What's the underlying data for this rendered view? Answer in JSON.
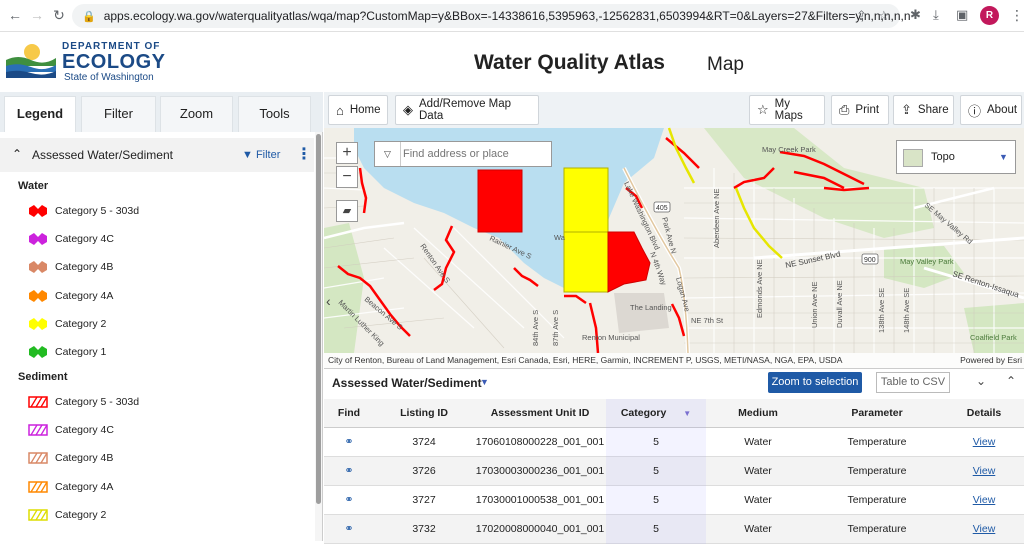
{
  "browser": {
    "url": "apps.ecology.wa.gov/waterqualityatlas/wqa/map?CustomMap=y&BBox=-14338616,5395963,-12562831,6503994&RT=0&Layers=27&Filters=y,n,n,n,n,n",
    "profile_initial": "R"
  },
  "header": {
    "dept_line": "DEPARTMENT OF",
    "ecology_line": "ECOLOGY",
    "state_line": "State of Washington",
    "title": "Water Quality Atlas",
    "subtitle": "Map"
  },
  "tabs": [
    {
      "label": "Legend",
      "active": true
    },
    {
      "label": "Filter",
      "active": false
    },
    {
      "label": "Zoom",
      "active": false
    },
    {
      "label": "Tools",
      "active": false
    }
  ],
  "layer_panel": {
    "title": "Assessed Water/Sediment",
    "filter_label": "Filter"
  },
  "legend": {
    "water_title": "Water",
    "water_items": [
      {
        "label": "Category 5 - 303d",
        "color": "#ff0000"
      },
      {
        "label": "Category 4C",
        "color": "#cc22dd"
      },
      {
        "label": "Category 4B",
        "color": "#d98866"
      },
      {
        "label": "Category 4A",
        "color": "#ff8800"
      },
      {
        "label": "Category 2",
        "color": "#ffff00"
      },
      {
        "label": "Category 1",
        "color": "#22bb22"
      }
    ],
    "sediment_title": "Sediment",
    "sediment_items": [
      {
        "label": "Category 5 - 303d",
        "color": "#ff0000"
      },
      {
        "label": "Category 4C",
        "color": "#cc22dd"
      },
      {
        "label": "Category 4B",
        "color": "#d98866"
      },
      {
        "label": "Category 4A",
        "color": "#ff8800"
      },
      {
        "label": "Category 2",
        "color": "#dddd00"
      }
    ]
  },
  "toolbar": {
    "home": "Home",
    "add_remove": "Add/Remove Map Data",
    "my_maps": "My Maps",
    "print": "Print",
    "share": "Share",
    "about": "About"
  },
  "map": {
    "search_placeholder": "Find address or place",
    "basemap": "Topo",
    "attribution": "City of Renton, Bureau of Land Management, Esri Canada, Esri, HERE, Garmin, INCREMENT P, USGS, METI/NASA, NGA, EPA, USDA",
    "powered_by": "Powered by Esri",
    "labels": {
      "may_creek_park": "May Creek Park",
      "may_valley": "May Valley Park",
      "landing": "The Landing",
      "renton_municipal": "Renton Municipal",
      "aberdeen": "Aberdeen Ave NE",
      "sunset": "NE Sunset Blvd",
      "renton_issaquah": "SE Renton-Issaqua",
      "may_valley_rd": "SE May Valley Rd",
      "coalfield": "Coalfield Park",
      "rainier": "Rainier Ave S",
      "beacon": "Beacon Ave S",
      "mlk": "Martin Luther King",
      "renton_ave": "Renton Ave S",
      "lake_wash_blvd": "Lake Washington Blvd",
      "wa": "Wa",
      "ne_7th": "NE 7th St",
      "logan": "Logan Ave",
      "84th": "84th Ave S",
      "87th": "87th Ave S",
      "edmonds": "Edmonds Ave NE",
      "union": "Union Ave NE",
      "duvall": "Duvall Ave NE",
      "138th": "138th Ave SE",
      "148th": "148th Ave SE",
      "hwy405": "405",
      "hwy900": "900",
      "park_ave": "Park Ave N",
      "n_4th": "N 4th Way"
    }
  },
  "results": {
    "title": "Assessed Water/Sediment",
    "zoom_to_selection": "Zoom to selection",
    "table_to_csv": "Table to CSV",
    "columns": [
      "Find",
      "Listing ID",
      "Assessment Unit ID",
      "Category",
      "Medium",
      "Parameter",
      "Details"
    ],
    "rows": [
      {
        "listing_id": "3724",
        "au_id": "17060108000228_001_001",
        "category": "5",
        "medium": "Water",
        "parameter": "Temperature",
        "details": "View"
      },
      {
        "listing_id": "3726",
        "au_id": "17030003000236_001_001",
        "category": "5",
        "medium": "Water",
        "parameter": "Temperature",
        "details": "View"
      },
      {
        "listing_id": "3727",
        "au_id": "17030001000538_001_001",
        "category": "5",
        "medium": "Water",
        "parameter": "Temperature",
        "details": "View"
      },
      {
        "listing_id": "3732",
        "au_id": "17020008000040_001_001",
        "category": "5",
        "medium": "Water",
        "parameter": "Temperature",
        "details": "View"
      }
    ]
  }
}
